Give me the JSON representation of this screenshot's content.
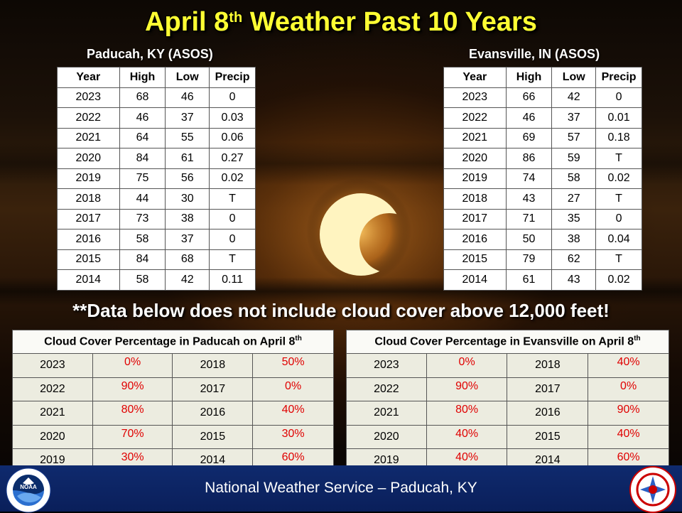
{
  "title": {
    "prefix": "April 8",
    "sup": "th",
    "suffix": " Weather Past 10 Years"
  },
  "paducah": {
    "label": "Paducah, KY (ASOS)",
    "headers": [
      "Year",
      "High",
      "Low",
      "Precip"
    ],
    "rows": [
      [
        "2023",
        "68",
        "46",
        "0"
      ],
      [
        "2022",
        "46",
        "37",
        "0.03"
      ],
      [
        "2021",
        "64",
        "55",
        "0.06"
      ],
      [
        "2020",
        "84",
        "61",
        "0.27"
      ],
      [
        "2019",
        "75",
        "56",
        "0.02"
      ],
      [
        "2018",
        "44",
        "30",
        "T"
      ],
      [
        "2017",
        "73",
        "38",
        "0"
      ],
      [
        "2016",
        "58",
        "37",
        "0"
      ],
      [
        "2015",
        "84",
        "68",
        "T"
      ],
      [
        "2014",
        "58",
        "42",
        "0.11"
      ]
    ]
  },
  "evansville": {
    "label": "Evansville, IN (ASOS)",
    "headers": [
      "Year",
      "High",
      "Low",
      "Precip"
    ],
    "rows": [
      [
        "2023",
        "66",
        "42",
        "0"
      ],
      [
        "2022",
        "46",
        "37",
        "0.01"
      ],
      [
        "2021",
        "69",
        "57",
        "0.18"
      ],
      [
        "2020",
        "86",
        "59",
        "T"
      ],
      [
        "2019",
        "74",
        "58",
        "0.02"
      ],
      [
        "2018",
        "43",
        "27",
        "T"
      ],
      [
        "2017",
        "71",
        "35",
        "0"
      ],
      [
        "2016",
        "50",
        "38",
        "0.04"
      ],
      [
        "2015",
        "79",
        "62",
        "T"
      ],
      [
        "2014",
        "61",
        "43",
        "0.02"
      ]
    ]
  },
  "note": "**Data below does not include cloud cover above 12,000 feet!",
  "cloud_paducah": {
    "title": "Cloud Cover Percentage in Paducah on April 8",
    "title_sup": "th",
    "rows": [
      [
        "2023",
        "0%",
        "2018",
        "50%"
      ],
      [
        "2022",
        "90%",
        "2017",
        "0%"
      ],
      [
        "2021",
        "80%",
        "2016",
        "40%"
      ],
      [
        "2020",
        "70%",
        "2015",
        "30%"
      ],
      [
        "2019",
        "30%",
        "2014",
        "60%"
      ]
    ]
  },
  "cloud_evansville": {
    "title": "Cloud Cover Percentage in Evansville on April 8",
    "title_sup": "th",
    "rows": [
      [
        "2023",
        "0%",
        "2018",
        "40%"
      ],
      [
        "2022",
        "90%",
        "2017",
        "0%"
      ],
      [
        "2021",
        "80%",
        "2016",
        "90%"
      ],
      [
        "2020",
        "40%",
        "2015",
        "40%"
      ],
      [
        "2019",
        "40%",
        "2014",
        "60%"
      ]
    ]
  },
  "footer": {
    "text": "National Weather Service – Paducah, KY"
  },
  "colors": {
    "title": "#ffff33",
    "percent": "#e00000",
    "footer_bg": "#0f2a6e",
    "sun": "#fff4c0"
  },
  "icons": {
    "left_logo": "noaa-logo-icon",
    "right_logo": "nws-logo-icon",
    "sun": "partial-eclipse-sun-icon"
  }
}
